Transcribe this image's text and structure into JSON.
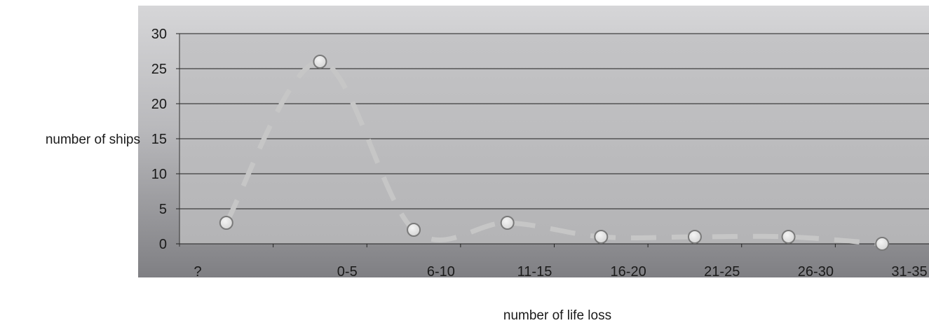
{
  "chart_data": {
    "type": "line",
    "title": "",
    "xlabel": "number of life loss",
    "ylabel": "number of ships",
    "categories": [
      "?",
      "0-5",
      "6-10",
      "11-15",
      "16-20",
      "21-25",
      "26-30",
      "31-35"
    ],
    "series": [
      {
        "values": [
          3,
          26,
          2,
          3,
          1,
          1,
          1,
          0
        ]
      }
    ],
    "yticks": [
      "0",
      "5",
      "10",
      "15",
      "20",
      "25",
      "30"
    ],
    "ylim": [
      0,
      30
    ],
    "grid": true,
    "line_style": "dashed smooth",
    "marker": "circle",
    "colors": {
      "line": "#c6c6c6",
      "marker_fill": "#e6e6e6",
      "marker_stroke": "#7a7a7a",
      "gridline": "#1e1e1e"
    }
  }
}
